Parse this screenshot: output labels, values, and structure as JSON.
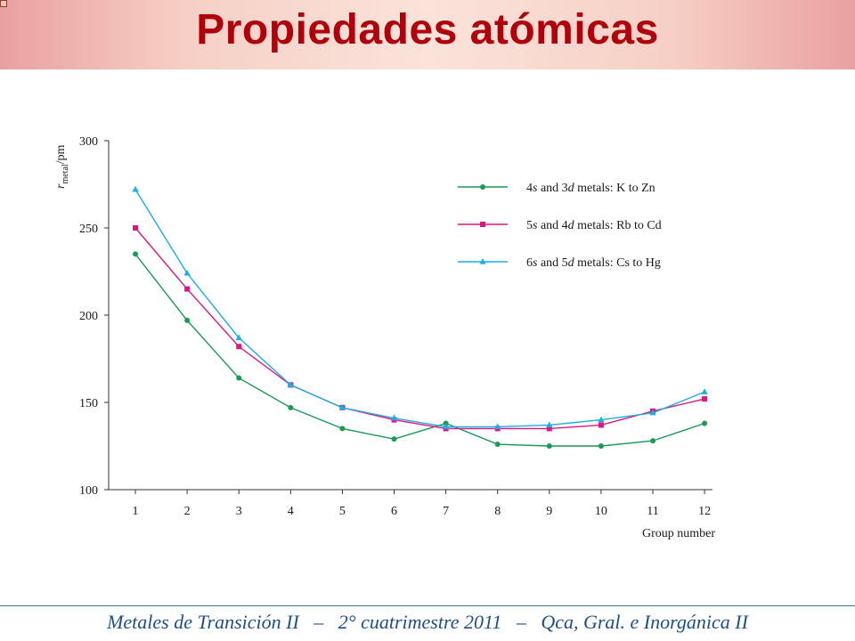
{
  "slide": {
    "title": "Propiedades atómicas",
    "footer": "Metales de Transición II   –   2° cuatrimestre 2011   –   Qca, Gral. e Inorgánica II"
  },
  "colors": {
    "title": "#b0000c",
    "footer": "#1f4e8c",
    "series_green": "#1a9a55",
    "series_magenta": "#e0157f",
    "series_cyan": "#1aaee6"
  },
  "chart_data": {
    "type": "line",
    "xlabel": "Group number",
    "ylabel_main": "r",
    "ylabel_sub": "metal",
    "ylabel_tail": "/pm",
    "x": [
      1,
      2,
      3,
      4,
      5,
      6,
      7,
      8,
      9,
      10,
      11,
      12
    ],
    "xticks": [
      1,
      2,
      3,
      4,
      5,
      6,
      7,
      8,
      9,
      10,
      11,
      12
    ],
    "yticks": [
      100,
      150,
      200,
      250,
      300
    ],
    "xlim": [
      0.5,
      12
    ],
    "ylim": [
      100,
      300
    ],
    "grid": false,
    "legend_position": "top-right",
    "series": [
      {
        "label_parts": [
          [
            "4",
            "n"
          ],
          [
            "s",
            "i"
          ],
          [
            " and 3",
            "n"
          ],
          [
            "d",
            "i"
          ],
          [
            " metals: K to Zn",
            "n"
          ]
        ],
        "marker": "circle",
        "color": "#1a9a55",
        "values": [
          235,
          197,
          164,
          147,
          135,
          129,
          138,
          126,
          125,
          125,
          128,
          138
        ]
      },
      {
        "label_parts": [
          [
            "5",
            "n"
          ],
          [
            "s",
            "i"
          ],
          [
            " and 4",
            "n"
          ],
          [
            "d",
            "i"
          ],
          [
            " metals: Rb to Cd",
            "n"
          ]
        ],
        "marker": "square",
        "color": "#e0157f",
        "values": [
          250,
          215,
          182,
          160,
          147,
          140,
          135,
          135,
          135,
          137,
          145,
          152
        ]
      },
      {
        "label_parts": [
          [
            "6",
            "n"
          ],
          [
            "s",
            "i"
          ],
          [
            " and 5",
            "n"
          ],
          [
            "d",
            "i"
          ],
          [
            " metals: Cs to Hg",
            "n"
          ]
        ],
        "marker": "triangle",
        "color": "#1aaee6",
        "values": [
          272,
          224,
          187,
          160,
          147,
          141,
          136,
          136,
          137,
          140,
          144,
          156
        ]
      }
    ]
  }
}
